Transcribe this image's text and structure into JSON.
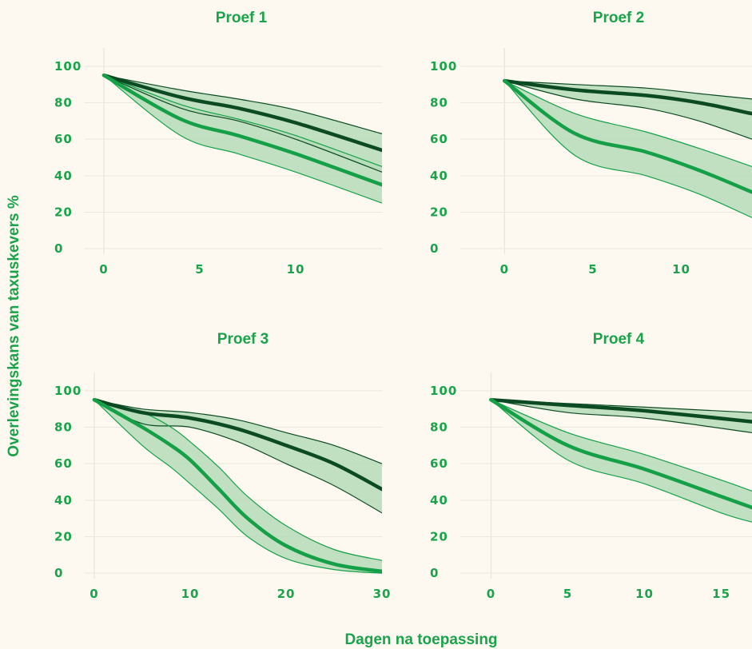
{
  "figure": {
    "ylabel": "Overlevingskans van taxuskevers %",
    "xlabel": "Dagen na toepassing"
  },
  "colors": {
    "background": "#fdf9f0",
    "text": "#1aa34a",
    "dark_line": "#0b4a22",
    "light_line": "#15a048",
    "band_fill": "#b5dcb8",
    "grid": "#ece7dc"
  },
  "chart_data": [
    {
      "type": "line",
      "title": "Proef 1",
      "xticks": [
        0,
        5,
        10
      ],
      "yticks": [
        0,
        20,
        40,
        60,
        80,
        100
      ],
      "xlim": [
        -1,
        14.5
      ],
      "ylim": [
        -3,
        110
      ],
      "series": [
        {
          "x": [
            0,
            4,
            7,
            10,
            14.5
          ],
          "y": [
            95,
            83,
            77,
            69,
            54
          ],
          "lower": [
            95,
            77,
            70,
            60,
            42
          ],
          "upper": [
            95,
            87,
            82,
            76,
            63
          ]
        },
        {
          "x": [
            0,
            4,
            7,
            10,
            14.5
          ],
          "y": [
            95,
            71,
            62,
            52,
            35
          ],
          "lower": [
            95,
            62,
            52,
            42,
            25
          ],
          "upper": [
            95,
            79,
            71,
            62,
            45
          ]
        }
      ]
    },
    {
      "type": "line",
      "title": "Proef 2",
      "xticks": [
        0,
        5,
        10
      ],
      "yticks": [
        0,
        20,
        40,
        60,
        80,
        100
      ],
      "xlim": [
        -2.5,
        14
      ],
      "ylim": [
        -3,
        110
      ],
      "series": [
        {
          "x": [
            0,
            4,
            8,
            11,
            14
          ],
          "y": [
            92,
            87,
            84,
            80,
            74
          ],
          "lower": [
            92,
            82,
            77,
            70,
            60
          ],
          "upper": [
            92,
            90,
            88,
            85,
            82
          ]
        },
        {
          "x": [
            0,
            4,
            8,
            11,
            14
          ],
          "y": [
            92,
            63,
            53,
            43,
            31
          ],
          "lower": [
            92,
            51,
            40,
            30,
            17
          ],
          "upper": [
            92,
            74,
            64,
            55,
            45
          ]
        }
      ]
    },
    {
      "type": "line",
      "title": "Proef 3",
      "xticks": [
        0,
        10,
        20,
        30
      ],
      "yticks": [
        0,
        20,
        40,
        60,
        80,
        100
      ],
      "xlim": [
        -1,
        30
      ],
      "ylim": [
        -3,
        110
      ],
      "series": [
        {
          "x": [
            0,
            5,
            10,
            15,
            20,
            25,
            30
          ],
          "y": [
            95,
            88,
            85,
            79,
            70,
            60,
            46
          ],
          "lower": [
            95,
            82,
            80,
            72,
            60,
            48,
            33
          ],
          "upper": [
            95,
            90,
            88,
            84,
            77,
            70,
            60
          ]
        },
        {
          "x": [
            0,
            5,
            8,
            10,
            13,
            16,
            20,
            25,
            30
          ],
          "y": [
            95,
            80,
            70,
            62,
            46,
            30,
            15,
            5,
            1
          ],
          "lower": [
            95,
            70,
            58,
            49,
            35,
            20,
            8,
            2,
            0
          ],
          "upper": [
            95,
            88,
            80,
            72,
            58,
            42,
            26,
            13,
            7
          ]
        }
      ]
    },
    {
      "type": "line",
      "title": "Proef 4",
      "xticks": [
        0,
        5,
        10,
        15
      ],
      "yticks": [
        0,
        20,
        40,
        60,
        80,
        100
      ],
      "xlim": [
        -2,
        17
      ],
      "ylim": [
        -3,
        110
      ],
      "series": [
        {
          "x": [
            0,
            5,
            10,
            17
          ],
          "y": [
            95,
            92,
            89,
            83
          ],
          "lower": [
            95,
            88,
            85,
            77
          ],
          "upper": [
            95,
            93,
            91,
            88
          ]
        },
        {
          "x": [
            0,
            5,
            10,
            15,
            17
          ],
          "y": [
            95,
            70,
            57,
            42,
            36
          ],
          "lower": [
            95,
            62,
            49,
            33,
            28
          ],
          "upper": [
            95,
            77,
            65,
            51,
            45
          ]
        }
      ]
    }
  ]
}
